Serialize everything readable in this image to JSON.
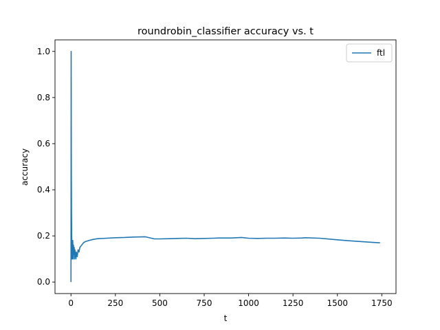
{
  "chart_data": {
    "type": "line",
    "title": "roundrobin_classifier accuracy vs. t",
    "xlabel": "t",
    "ylabel": "accuracy",
    "xlim": [
      -90,
      1830
    ],
    "ylim": [
      -0.05,
      1.05
    ],
    "xticks": [
      0,
      250,
      500,
      750,
      1000,
      1250,
      1500,
      1750
    ],
    "yticks": [
      0.0,
      0.2,
      0.4,
      0.6,
      0.8,
      1.0
    ],
    "xtick_labels": [
      "0",
      "250",
      "500",
      "750",
      "1000",
      "1250",
      "1500",
      "1750"
    ],
    "ytick_labels": [
      "0.0",
      "0.2",
      "0.4",
      "0.6",
      "0.8",
      "1.0"
    ],
    "grid": false,
    "legend": {
      "placement": "top-right",
      "entries": [
        "ftl"
      ]
    },
    "series": [
      {
        "name": "ftl",
        "color": "#1f77b4",
        "x": [
          0,
          1,
          2,
          3,
          4,
          5,
          6,
          7,
          8,
          10,
          12,
          14,
          16,
          18,
          20,
          22,
          25,
          28,
          30,
          35,
          40,
          45,
          50,
          60,
          70,
          80,
          100,
          125,
          150,
          200,
          250,
          300,
          350,
          420,
          470,
          500,
          550,
          600,
          650,
          700,
          750,
          800,
          830,
          900,
          960,
          1000,
          1050,
          1100,
          1150,
          1200,
          1250,
          1300,
          1320,
          1400,
          1500,
          1600,
          1700,
          1740
        ],
        "y": [
          0.0,
          1.0,
          0.5,
          0.3,
          0.2,
          0.15,
          0.1,
          0.18,
          0.12,
          0.18,
          0.1,
          0.16,
          0.12,
          0.15,
          0.1,
          0.14,
          0.12,
          0.1,
          0.13,
          0.11,
          0.14,
          0.13,
          0.15,
          0.16,
          0.17,
          0.175,
          0.18,
          0.185,
          0.188,
          0.19,
          0.192,
          0.193,
          0.195,
          0.196,
          0.187,
          0.187,
          0.188,
          0.189,
          0.19,
          0.188,
          0.189,
          0.19,
          0.191,
          0.191,
          0.193,
          0.19,
          0.189,
          0.19,
          0.19,
          0.191,
          0.19,
          0.191,
          0.192,
          0.19,
          0.183,
          0.177,
          0.172,
          0.17
        ]
      }
    ]
  }
}
